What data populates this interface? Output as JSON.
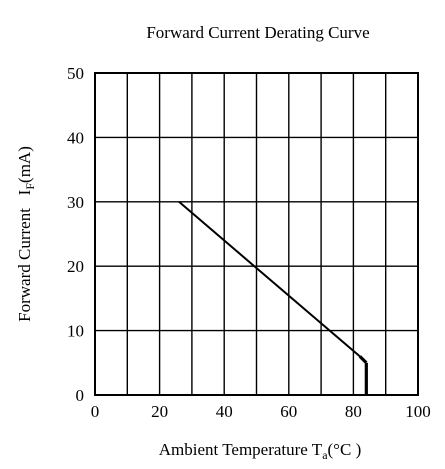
{
  "chart_data": {
    "type": "line",
    "title": "Forward Current Derating Curve",
    "xlabel": "Ambient Temperature T",
    "xlabel_sub": "a",
    "xlabel_unit": "(°C )",
    "ylabel": "Forward Current   I",
    "ylabel_sub": "F",
    "ylabel_unit": "(mA)",
    "xlim": [
      0,
      100
    ],
    "ylim": [
      0,
      50
    ],
    "xticks": [
      0,
      20,
      40,
      60,
      80,
      100
    ],
    "yticks": [
      0,
      10,
      20,
      30,
      40,
      50
    ],
    "grid_x_step": 10,
    "grid_y_step": 10,
    "grid": true,
    "series": [
      {
        "points": [
          {
            "x": 26,
            "y": 30
          },
          {
            "x": 82,
            "y": 6
          },
          {
            "x": 84,
            "y": 5
          },
          {
            "x": 84,
            "y": 0
          }
        ]
      }
    ],
    "line_color": "#000000"
  }
}
